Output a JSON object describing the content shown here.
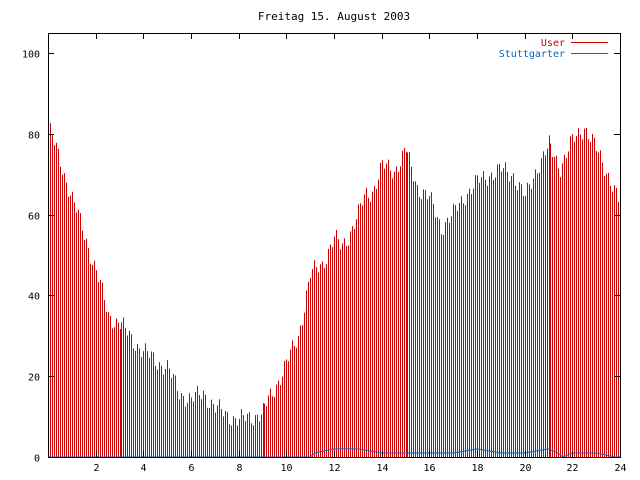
{
  "chart_data": {
    "type": "bar",
    "title": "Freitag 15. August 2003",
    "xlabel": "",
    "ylabel": "",
    "xlim": [
      0,
      24
    ],
    "ylim": [
      0,
      105
    ],
    "x_ticks": [
      2,
      4,
      6,
      8,
      10,
      12,
      14,
      16,
      18,
      20,
      22,
      24
    ],
    "y_ticks": [
      0,
      20,
      40,
      60,
      80,
      100
    ],
    "grid": false,
    "legend_position": "top-right",
    "colors": {
      "User": "#cc0000",
      "Stuttgarter": "#0066cc"
    },
    "series": [
      {
        "name": "User",
        "x_hours": [
          0,
          2,
          2.5,
          3,
          4,
          5,
          5.5,
          6,
          6.5,
          7,
          8,
          9,
          10,
          10.5,
          11,
          11.5,
          12,
          12.3,
          12.6,
          13,
          13.3,
          13.6,
          14,
          14.5,
          15,
          15.5,
          16,
          16.5,
          17,
          17.5,
          18,
          18.5,
          19,
          19.5,
          20,
          20.5,
          21,
          21.5,
          22,
          22.5,
          23,
          23.5,
          24
        ],
        "values": [
          82,
          46,
          35,
          33,
          26,
          22,
          16,
          14,
          16,
          12,
          9,
          11,
          23,
          30,
          45,
          48,
          54,
          52,
          55,
          60,
          65,
          66,
          72,
          71,
          76,
          67,
          64,
          57,
          60,
          65,
          68,
          70,
          71,
          70,
          64,
          72,
          77,
          72,
          78,
          82,
          76,
          70,
          62
        ]
      },
      {
        "name": "Stuttgarter",
        "x_hours": [
          0,
          11,
          11.2,
          12,
          13,
          14,
          16,
          17,
          18,
          19,
          20,
          21,
          21.4,
          21.6,
          22,
          23,
          23.8,
          24
        ],
        "values": [
          0,
          0,
          1,
          2,
          2,
          1,
          1,
          1,
          2,
          1,
          1,
          2,
          1,
          0,
          1,
          1,
          0,
          0
        ]
      }
    ]
  }
}
